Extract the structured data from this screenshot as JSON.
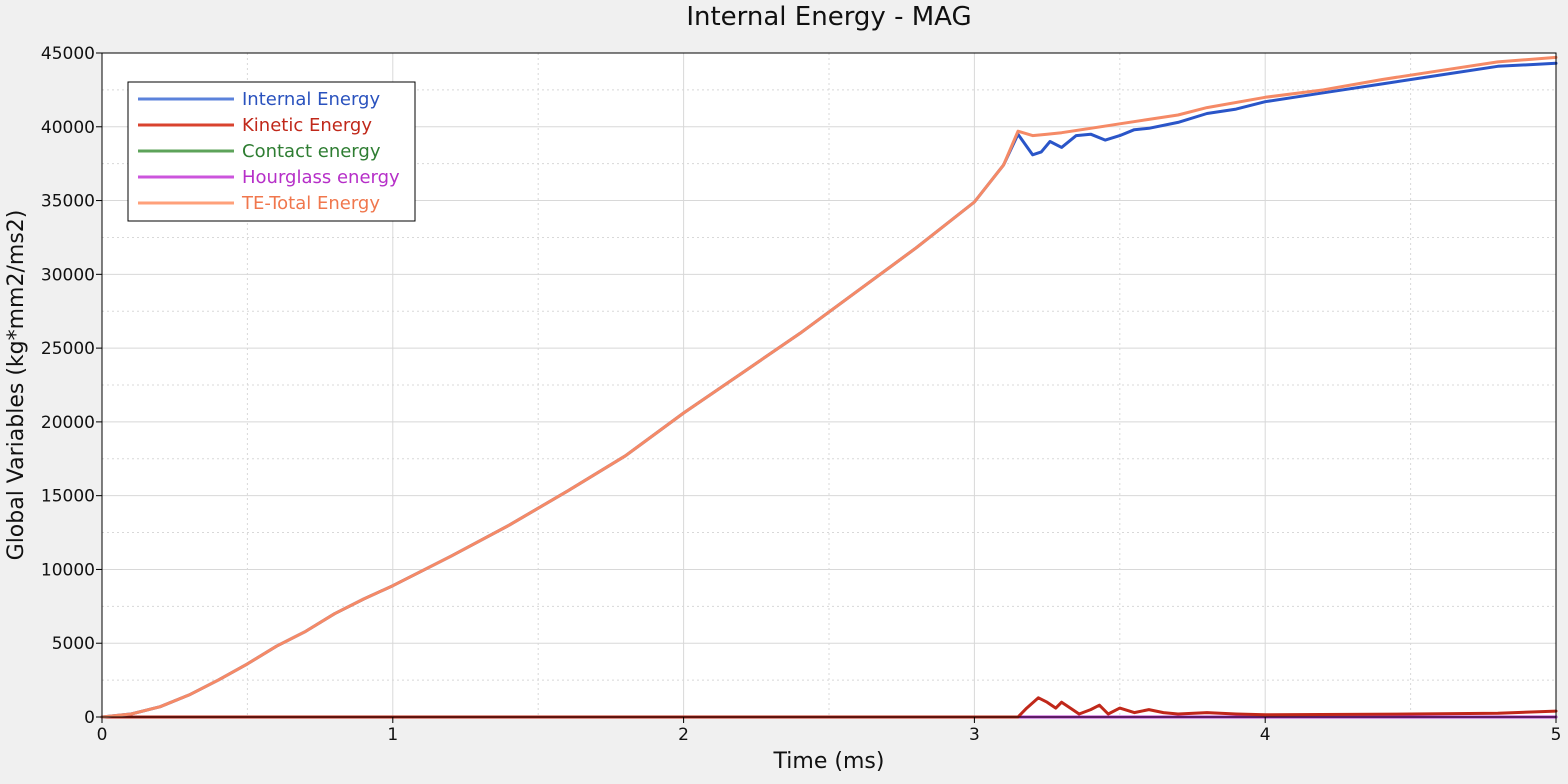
{
  "chart_data": {
    "type": "line",
    "title": "Internal Energy - MAG",
    "xlabel": "Time (ms)",
    "ylabel": "Global Variables (kg*mm2/ms2)",
    "xlim": [
      0,
      5
    ],
    "ylim": [
      0,
      45000
    ],
    "x_ticks": [
      0,
      1,
      2,
      3,
      4,
      5
    ],
    "x_tick_labels": [
      "0",
      "1",
      "2",
      "3",
      "4",
      "5"
    ],
    "y_ticks": [
      0,
      5000,
      10000,
      15000,
      20000,
      25000,
      30000,
      35000,
      40000,
      45000
    ],
    "y_tick_labels": [
      "0",
      "5000",
      "10000",
      "15000",
      "20000",
      "25000",
      "30000",
      "35000",
      "40000",
      "45000"
    ],
    "grid": true,
    "minor_grid": true,
    "legend_position": "top-left",
    "series": [
      {
        "name": "Internal Energy",
        "line_color": "#5b82db",
        "text_color": "#2a52be",
        "plot_color": "#2a55c8",
        "x": [
          0,
          0.1,
          0.2,
          0.3,
          0.4,
          0.5,
          0.6,
          0.7,
          0.8,
          0.9,
          1.0,
          1.2,
          1.4,
          1.6,
          1.8,
          2.0,
          2.2,
          2.4,
          2.6,
          2.8,
          3.0,
          3.1,
          3.15,
          3.2,
          3.23,
          3.26,
          3.3,
          3.35,
          3.4,
          3.45,
          3.5,
          3.55,
          3.6,
          3.7,
          3.8,
          3.9,
          4.0,
          4.2,
          4.4,
          4.6,
          4.8,
          5.0
        ],
        "y": [
          0,
          200,
          700,
          1500,
          2500,
          3600,
          4800,
          5800,
          7000,
          8000,
          8900,
          10900,
          13000,
          15300,
          17700,
          20600,
          23300,
          26000,
          28900,
          31800,
          34900,
          37400,
          39500,
          38100,
          38300,
          39000,
          38600,
          39400,
          39500,
          39100,
          39400,
          39800,
          39900,
          40300,
          40900,
          41200,
          41700,
          42300,
          42900,
          43500,
          44100,
          44300
        ]
      },
      {
        "name": "Kinetic Energy",
        "line_color": "#d9432f",
        "text_color": "#c0281a",
        "plot_color": "#c0281a",
        "x": [
          0,
          3.0,
          3.15,
          3.18,
          3.22,
          3.25,
          3.28,
          3.3,
          3.33,
          3.36,
          3.4,
          3.43,
          3.46,
          3.5,
          3.55,
          3.6,
          3.65,
          3.7,
          3.8,
          3.9,
          4.0,
          4.5,
          4.8,
          5.0
        ],
        "y": [
          0,
          0,
          0,
          600,
          1300,
          1000,
          600,
          1000,
          600,
          200,
          500,
          800,
          200,
          600,
          300,
          500,
          300,
          200,
          300,
          200,
          150,
          200,
          250,
          400
        ]
      },
      {
        "name": "Contact energy",
        "line_color": "#5da35a",
        "text_color": "#2e7d32",
        "plot_color": "#3c8d3c",
        "x": [
          0,
          5
        ],
        "y": [
          0,
          0
        ]
      },
      {
        "name": "Hourglass energy",
        "line_color": "#cc55dd",
        "text_color": "#b62fc8",
        "plot_color": "#b939cc",
        "x": [
          0,
          5
        ],
        "y": [
          0,
          0
        ]
      },
      {
        "name": "TE-Total Energy",
        "line_color": "#ffa07a",
        "text_color": "#f0774d",
        "plot_color": "#f58a66",
        "x": [
          0,
          0.1,
          0.2,
          0.3,
          0.4,
          0.5,
          0.6,
          0.7,
          0.8,
          0.9,
          1.0,
          1.2,
          1.4,
          1.6,
          1.8,
          2.0,
          2.2,
          2.4,
          2.6,
          2.8,
          3.0,
          3.1,
          3.15,
          3.2,
          3.25,
          3.3,
          3.4,
          3.5,
          3.6,
          3.7,
          3.8,
          4.0,
          4.2,
          4.4,
          4.6,
          4.8,
          5.0
        ],
        "y": [
          0,
          200,
          700,
          1500,
          2500,
          3600,
          4800,
          5800,
          7000,
          8000,
          8900,
          10900,
          13000,
          15300,
          17700,
          20600,
          23300,
          26000,
          28900,
          31800,
          34900,
          37400,
          39700,
          39400,
          39500,
          39600,
          39900,
          40200,
          40500,
          40800,
          41300,
          42000,
          42500,
          43200,
          43800,
          44400,
          44700
        ]
      }
    ]
  }
}
